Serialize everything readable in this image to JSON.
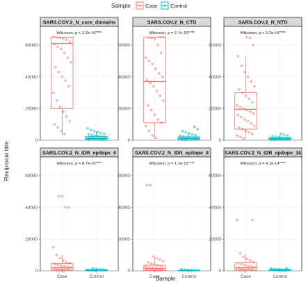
{
  "legend": {
    "title": "Sample",
    "entries": [
      {
        "label": "Case",
        "color": "#F8766D"
      },
      {
        "label": "Control",
        "color": "#00BFC4"
      }
    ]
  },
  "axis_labels": {
    "x": "Sample",
    "y": "Reciprocal titre"
  },
  "chart_data": [
    {
      "type": "box",
      "title": "SARS.COV.2_N_core_domains",
      "annotation": "Wilcoxon, p < 2.2e-16****",
      "categories": [
        "Case",
        "Control"
      ],
      "ylim": [
        0,
        70000
      ],
      "yticks": [
        0,
        20000,
        40000,
        60000
      ],
      "boxes": [
        {
          "group": "Case",
          "q1": 20000,
          "median": 61000,
          "q3": 65000,
          "whisker_low": 3000,
          "whisker_high": 65000
        },
        {
          "group": "Control",
          "q1": 500,
          "median": 1200,
          "q3": 2500,
          "whisker_low": 100,
          "whisker_high": 5200
        }
      ],
      "points": [
        {
          "group": "Case",
          "values": [
            65000,
            64800,
            64500,
            64200,
            63500,
            62000,
            60500,
            59000,
            57500,
            55000,
            52000,
            49000,
            46000,
            43000,
            40000,
            37500,
            34000,
            30000,
            25000,
            21000,
            18000,
            15000,
            12000,
            10000,
            8000,
            6000,
            4000
          ]
        },
        {
          "group": "Control",
          "values": [
            7500,
            6500,
            5800,
            5200,
            4600,
            4100,
            3700,
            3300,
            3000,
            2700,
            2400,
            2100,
            1900,
            1700,
            1500,
            1300,
            1100,
            950,
            800,
            650,
            500,
            400,
            300,
            200
          ]
        }
      ]
    },
    {
      "type": "box",
      "title": "SARS.COV.2_N_CTD",
      "annotation": "Wilcoxon, p = 2.7e-16****",
      "categories": [
        "Case",
        "Control"
      ],
      "ylim": [
        0,
        70000
      ],
      "yticks": [
        0,
        20000,
        40000,
        60000
      ],
      "boxes": [
        {
          "group": "Case",
          "q1": 11000,
          "median": 37000,
          "q3": 65000,
          "whisker_low": 1000,
          "whisker_high": 65000
        },
        {
          "group": "Control",
          "q1": 500,
          "median": 1200,
          "q3": 2200,
          "whisker_low": 100,
          "whisker_high": 4500
        }
      ],
      "points": [
        {
          "group": "Case",
          "values": [
            65000,
            65000,
            64800,
            64500,
            64000,
            60000,
            55000,
            52000,
            50000,
            48000,
            45000,
            42000,
            40000,
            38000,
            36000,
            34000,
            31000,
            28000,
            25000,
            22000,
            19000,
            16000,
            13000,
            11000,
            9000,
            6000,
            3000,
            1500
          ]
        },
        {
          "group": "Control",
          "values": [
            8500,
            7000,
            5800,
            5000,
            4300,
            3700,
            3200,
            2800,
            2400,
            2100,
            1800,
            1600,
            1400,
            1200,
            1000,
            850,
            700,
            550,
            400,
            300,
            200
          ]
        }
      ]
    },
    {
      "type": "box",
      "title": "SARS.COV.2_N_NTD",
      "annotation": "Wilcoxon, p < 2.2e-16****",
      "categories": [
        "Case",
        "Control"
      ],
      "ylim": [
        0,
        70000
      ],
      "yticks": [
        0,
        20000,
        40000,
        60000
      ],
      "boxes": [
        {
          "group": "Case",
          "q1": 7000,
          "median": 19500,
          "q3": 30000,
          "whisker_low": 1000,
          "whisker_high": 53000
        },
        {
          "group": "Control",
          "q1": 400,
          "median": 1000,
          "q3": 1800,
          "whisker_low": 100,
          "whisker_high": 3500
        }
      ],
      "points": [
        {
          "group": "Case",
          "values": [
            65000,
            64500,
            60000,
            53000,
            47000,
            43000,
            40000,
            37000,
            34000,
            32000,
            30000,
            28000,
            26000,
            24000,
            22000,
            21000,
            20000,
            19000,
            18000,
            17000,
            16000,
            14500,
            13000,
            12000,
            10500,
            9000,
            8000,
            7000,
            6000,
            5000,
            4000,
            3000,
            2000,
            1200
          ]
        },
        {
          "group": "Control",
          "values": [
            4000,
            3400,
            2900,
            2500,
            2200,
            1900,
            1600,
            1400,
            1200,
            1000,
            850,
            700,
            550,
            400,
            300,
            200
          ]
        }
      ]
    },
    {
      "type": "box",
      "title": "SARS.COV.2_N_IDR_epitope_6",
      "annotation": "Wilcoxon, p = 8.7e-16****",
      "categories": [
        "Case",
        "Control"
      ],
      "ylim": [
        0,
        70000
      ],
      "yticks": [
        0,
        20000,
        40000,
        60000
      ],
      "boxes": [
        {
          "group": "Case",
          "q1": 500,
          "median": 2000,
          "q3": 4500,
          "whisker_low": 0,
          "whisker_high": 10000
        },
        {
          "group": "Control",
          "q1": 100,
          "median": 300,
          "q3": 700,
          "whisker_low": 0,
          "whisker_high": 1500
        }
      ],
      "points": [
        {
          "group": "Case",
          "values": [
            47000,
            47000,
            40000,
            40000,
            15000,
            10000,
            8000,
            6500,
            5500,
            4800,
            4200,
            3700,
            3200,
            2800,
            2400,
            2100,
            1800,
            1500,
            1200,
            1000,
            800,
            600,
            400,
            250,
            150
          ]
        },
        {
          "group": "Control",
          "values": [
            1500,
            1200,
            1000,
            850,
            700,
            600,
            500,
            400,
            300,
            250,
            200,
            150,
            100
          ]
        }
      ]
    },
    {
      "type": "box",
      "title": "SARS.COV.2_N_IDR_epitope_8",
      "annotation": "Wilcoxon, p = 1.1e-15****",
      "categories": [
        "Case",
        "Control"
      ],
      "ylim": [
        0,
        70000
      ],
      "yticks": [
        0,
        20000,
        40000,
        60000
      ],
      "boxes": [
        {
          "group": "Case",
          "q1": 300,
          "median": 1500,
          "q3": 3500,
          "whisker_low": 0,
          "whisker_high": 8500
        },
        {
          "group": "Control",
          "q1": 50,
          "median": 150,
          "q3": 400,
          "whisker_low": 0,
          "whisker_high": 800
        }
      ],
      "points": [
        {
          "group": "Case",
          "values": [
            54000,
            54000,
            9000,
            8000,
            7000,
            6000,
            5200,
            4500,
            3900,
            3400,
            2900,
            2500,
            2100,
            1800,
            1500,
            1200,
            1000,
            800,
            600,
            400,
            250,
            150
          ]
        },
        {
          "group": "Control",
          "values": [
            900,
            700,
            550,
            450,
            350,
            250,
            200,
            150,
            100,
            50
          ]
        }
      ]
    },
    {
      "type": "box",
      "title": "SARS.COV.2_N_IDR_epitope_16",
      "annotation": "Wilcoxon, p = 4.1e-14****",
      "categories": [
        "Case",
        "Control"
      ],
      "ylim": [
        0,
        70000
      ],
      "yticks": [
        0,
        20000,
        40000,
        60000
      ],
      "boxes": [
        {
          "group": "Case",
          "q1": 500,
          "median": 2000,
          "q3": 5000,
          "whisker_low": 0,
          "whisker_high": 11000
        },
        {
          "group": "Control",
          "q1": 100,
          "median": 400,
          "q3": 900,
          "whisker_low": 0,
          "whisker_high": 1800
        }
      ],
      "points": [
        {
          "group": "Case",
          "values": [
            32000,
            32000,
            11000,
            9000,
            7500,
            6500,
            5500,
            4800,
            4200,
            3600,
            3100,
            2700,
            2300,
            1900,
            1600,
            1300,
            1000,
            800,
            600,
            400,
            250
          ]
        },
        {
          "group": "Control",
          "values": [
            1800,
            1500,
            1200,
            1000,
            850,
            700,
            550,
            450,
            350,
            250,
            150,
            100
          ]
        }
      ]
    }
  ]
}
